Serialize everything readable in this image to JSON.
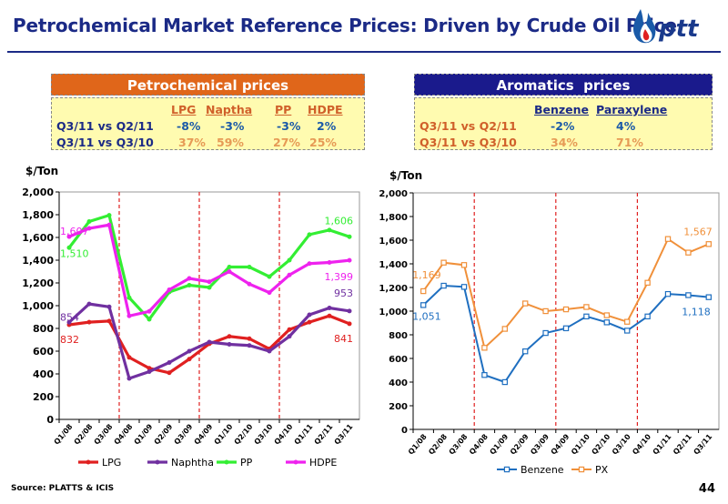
{
  "page": {
    "title": "Petrochemical Market Reference Prices: Driven by Crude Oil Price",
    "logo_text": "ptt",
    "source": "Source: PLATTS & ICIS",
    "page_number": "44"
  },
  "petro_table": {
    "header": "Petrochemical prices",
    "columns": [
      "LPG",
      "Naptha",
      "PP",
      "HDPE"
    ],
    "rows": [
      {
        "label": "Q3/11 vs Q2/11",
        "values": [
          "-8%",
          "-3%",
          "-3%",
          "2%"
        ]
      },
      {
        "label": "Q3/11 vs Q3/10",
        "values": [
          "37%",
          "59%",
          "27%",
          "25%"
        ]
      }
    ]
  },
  "arom_table": {
    "header": "Aromatics  prices",
    "columns": [
      "Benzene",
      "Paraxylene"
    ],
    "rows": [
      {
        "label": "Q3/11 vs Q2/11",
        "values": [
          "-2%",
          "4%"
        ]
      },
      {
        "label": "Q3/11 vs Q3/10",
        "values": [
          "34%",
          "71%"
        ]
      }
    ]
  },
  "colors": {
    "title": "#1b2a86",
    "petro_header_bg": "#e0661a",
    "arom_header_bg": "#1a1a8c",
    "table_bg": "#fffbb0",
    "lpg": "#e02020",
    "naphtha": "#7030a0",
    "pp": "#33ee33",
    "hdpe": "#ee22ee",
    "benzene": "#1f6fc0",
    "px": "#f0903a",
    "quarter_marker": "#e02020"
  },
  "chart_data": [
    {
      "type": "line",
      "ylabel": "$/Ton",
      "ylim": [
        0,
        2000
      ],
      "yticks": [
        "0",
        "200",
        "400",
        "600",
        "800",
        "1,000",
        "1,200",
        "1,400",
        "1,600",
        "1,800",
        "2,000"
      ],
      "categories": [
        "Q1/08",
        "Q2/08",
        "Q3/08",
        "Q4/08",
        "Q1/09",
        "Q2/09",
        "Q3/09",
        "Q4/09",
        "Q1/10",
        "Q2/10",
        "Q3/10",
        "Q4/10",
        "Q1/11",
        "Q2/11",
        "Q3/11"
      ],
      "legend_position": "bottom",
      "marker_lines_after": [
        "Q3/08",
        "Q3/09",
        "Q3/10"
      ],
      "series": [
        {
          "name": "LPG",
          "color": "#e02020",
          "values": [
            832,
            855,
            865,
            545,
            450,
            410,
            530,
            665,
            730,
            710,
            620,
            790,
            855,
            910,
            841
          ]
        },
        {
          "name": "Naphtha",
          "color": "#7030a0",
          "values": [
            854,
            1015,
            990,
            360,
            420,
            500,
            600,
            680,
            660,
            650,
            600,
            730,
            920,
            980,
            953
          ]
        },
        {
          "name": "PP",
          "color": "#33ee33",
          "values": [
            1510,
            1740,
            1795,
            1070,
            880,
            1120,
            1180,
            1160,
            1340,
            1340,
            1255,
            1400,
            1625,
            1665,
            1606
          ]
        },
        {
          "name": "HDPE",
          "color": "#ee22ee",
          "values": [
            1607,
            1680,
            1710,
            910,
            950,
            1140,
            1240,
            1210,
            1300,
            1190,
            1115,
            1270,
            1370,
            1380,
            1399
          ]
        }
      ],
      "annotations": [
        {
          "text": "1,607",
          "series": "HDPE",
          "category": "Q1/08"
        },
        {
          "text": "1,510",
          "series": "PP",
          "category": "Q1/08"
        },
        {
          "text": "854",
          "series": "Naphtha",
          "category": "Q1/08"
        },
        {
          "text": "832",
          "series": "LPG",
          "category": "Q1/08"
        },
        {
          "text": "1,606",
          "series": "PP",
          "category": "Q3/11"
        },
        {
          "text": "1,399",
          "series": "HDPE",
          "category": "Q3/11"
        },
        {
          "text": "953",
          "series": "Naphtha",
          "category": "Q3/11"
        },
        {
          "text": "841",
          "series": "LPG",
          "category": "Q3/11"
        }
      ]
    },
    {
      "type": "line",
      "ylabel": "$/Ton",
      "ylim": [
        0,
        2000
      ],
      "yticks": [
        "0",
        "200",
        "400",
        "600",
        "800",
        "1,000",
        "1,200",
        "1,400",
        "1,600",
        "1,800",
        "2,000"
      ],
      "categories": [
        "Q1/08",
        "Q2/08",
        "Q3/08",
        "Q4/08",
        "Q1/09",
        "Q2/09",
        "Q3/09",
        "Q4/09",
        "Q1/10",
        "Q2/10",
        "Q3/10",
        "Q4/10",
        "Q1/11",
        "Q2/11",
        "Q3/11"
      ],
      "legend_position": "bottom",
      "marker_lines_after": [
        "Q3/08",
        "Q3/09",
        "Q3/10"
      ],
      "series": [
        {
          "name": "Benzene",
          "color": "#1f6fc0",
          "values": [
            1051,
            1215,
            1205,
            460,
            400,
            660,
            815,
            855,
            955,
            905,
            835,
            955,
            1145,
            1135,
            1118
          ]
        },
        {
          "name": "PX",
          "color": "#f0903a",
          "values": [
            1169,
            1410,
            1390,
            690,
            850,
            1065,
            1000,
            1015,
            1035,
            965,
            910,
            1240,
            1610,
            1495,
            1567
          ]
        }
      ],
      "annotations": [
        {
          "text": "1,169",
          "series": "PX",
          "category": "Q1/08"
        },
        {
          "text": "1,051",
          "series": "Benzene",
          "category": "Q1/08"
        },
        {
          "text": "1,567",
          "series": "PX",
          "category": "Q3/11"
        },
        {
          "text": "1,118",
          "series": "Benzene",
          "category": "Q3/11"
        }
      ]
    }
  ]
}
